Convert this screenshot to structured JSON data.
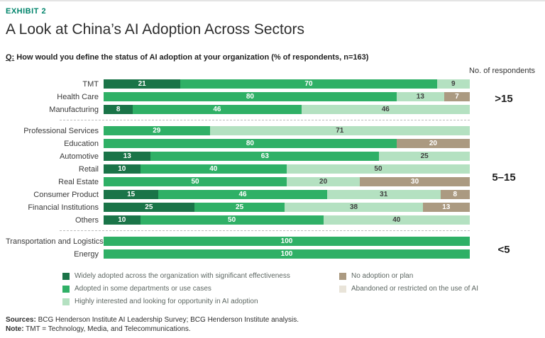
{
  "header": {
    "exhibit": "EXHIBIT 2",
    "title": "A Look at China’s AI Adoption Across Sectors",
    "question_prefix": "Q:",
    "question_text": " How would you define the status of AI adoption at your organization (% of respondents, n=163)"
  },
  "colors": {
    "accent": "#00846b",
    "segment_text_light": "#ffffff",
    "segment_text_dark": "#3f3f3f",
    "separator": "#bcbcbc"
  },
  "chart_data": {
    "type": "bar",
    "stacked": true,
    "orientation": "horizontal",
    "unit": "% of respondents",
    "xlim": [
      0,
      100
    ],
    "grid": false,
    "legend_position": "bottom",
    "respondents_header": "No. of respondents",
    "legend": [
      {
        "key": "widely",
        "label": "Widely adopted across the organization with significant effectiveness",
        "color": "#1a7448"
      },
      {
        "key": "some",
        "label": "Adopted in some departments or use cases",
        "color": "#2fb066"
      },
      {
        "key": "interested",
        "label": "Highly interested and looking for opportunity in AI adoption",
        "color": "#b4e1c1"
      },
      {
        "key": "none",
        "label": "No adoption or plan",
        "color": "#ab9a81"
      },
      {
        "key": "abandoned",
        "label": "Abandoned or restricted on the use of AI",
        "color": "#e9e4d9"
      }
    ],
    "groups": [
      {
        "respondents": ">15",
        "rows": [
          {
            "category": "TMT",
            "segments": [
              [
                "widely",
                21
              ],
              [
                "some",
                70
              ],
              [
                "interested",
                9
              ]
            ]
          },
          {
            "category": "Health Care",
            "segments": [
              [
                "some",
                80
              ],
              [
                "interested",
                13
              ],
              [
                "none",
                7
              ]
            ]
          },
          {
            "category": "Manufacturing",
            "segments": [
              [
                "widely",
                8
              ],
              [
                "some",
                46
              ],
              [
                "interested",
                46
              ]
            ]
          }
        ]
      },
      {
        "respondents": "5–15",
        "rows": [
          {
            "category": "Professional Services",
            "segments": [
              [
                "some",
                29
              ],
              [
                "interested",
                71
              ]
            ]
          },
          {
            "category": "Education",
            "segments": [
              [
                "some",
                80
              ],
              [
                "none",
                20
              ]
            ]
          },
          {
            "category": "Automotive",
            "segments": [
              [
                "widely",
                13
              ],
              [
                "some",
                63
              ],
              [
                "interested",
                25
              ]
            ]
          },
          {
            "category": "Retail",
            "segments": [
              [
                "widely",
                10
              ],
              [
                "some",
                40
              ],
              [
                "interested",
                50
              ]
            ]
          },
          {
            "category": "Real Estate",
            "segments": [
              [
                "some",
                50
              ],
              [
                "interested",
                20
              ],
              [
                "none",
                30
              ]
            ]
          },
          {
            "category": "Consumer Product",
            "segments": [
              [
                "widely",
                15
              ],
              [
                "some",
                46
              ],
              [
                "interested",
                31
              ],
              [
                "none",
                8
              ]
            ]
          },
          {
            "category": "Financial Institutions",
            "segments": [
              [
                "widely",
                25
              ],
              [
                "some",
                25
              ],
              [
                "interested",
                38
              ],
              [
                "none",
                13
              ]
            ]
          },
          {
            "category": "Others",
            "segments": [
              [
                "widely",
                10
              ],
              [
                "some",
                50
              ],
              [
                "interested",
                40
              ]
            ]
          }
        ]
      },
      {
        "respondents": "<5",
        "rows": [
          {
            "category": "Transportation and Logistics",
            "segments": [
              [
                "some",
                100
              ]
            ]
          },
          {
            "category": "Energy",
            "segments": [
              [
                "some",
                100
              ]
            ]
          }
        ]
      }
    ]
  },
  "footer": {
    "sources_label": "Sources:",
    "sources_text": " BCG Henderson Institute AI Leadership Survey; BCG Henderson Institute analysis.",
    "note_label": "Note:",
    "note_text": " TMT = Technology, Media, and Telecommunications."
  }
}
